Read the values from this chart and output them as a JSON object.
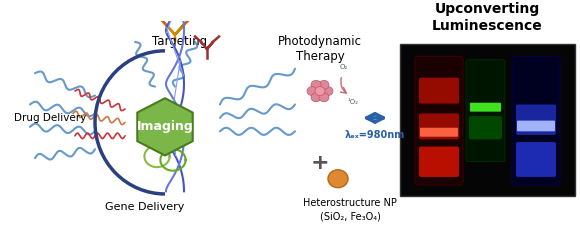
{
  "title_left": "",
  "title_right": "Upconverting\nLuminescence",
  "label_targeting": "Targeting",
  "label_photodynamic": "Photodynamic\nTherapy",
  "label_drug": "Drug Delivery",
  "label_gene": "Gene Delivery",
  "label_imaging": "Imaging",
  "label_hetero": "Heterostructure NP\n(SiO₂, Fe₃O₄)",
  "label_wavelength": "λₑₓ=980nm",
  "bg_color": "#ffffff",
  "diagram_bg": "#f5f5f5",
  "hex_color": "#7ab648",
  "hex_edge_color": "#4a7a20",
  "circle_color": "#2a4080",
  "arrow_color": "#2a5faa",
  "photo_bg": "#000000",
  "tube1_color": "#cc2200",
  "tube2_color": "#003300",
  "tube3_color": "#110055",
  "font_size_labels": 7.5,
  "font_size_imaging": 9,
  "font_size_title": 10
}
